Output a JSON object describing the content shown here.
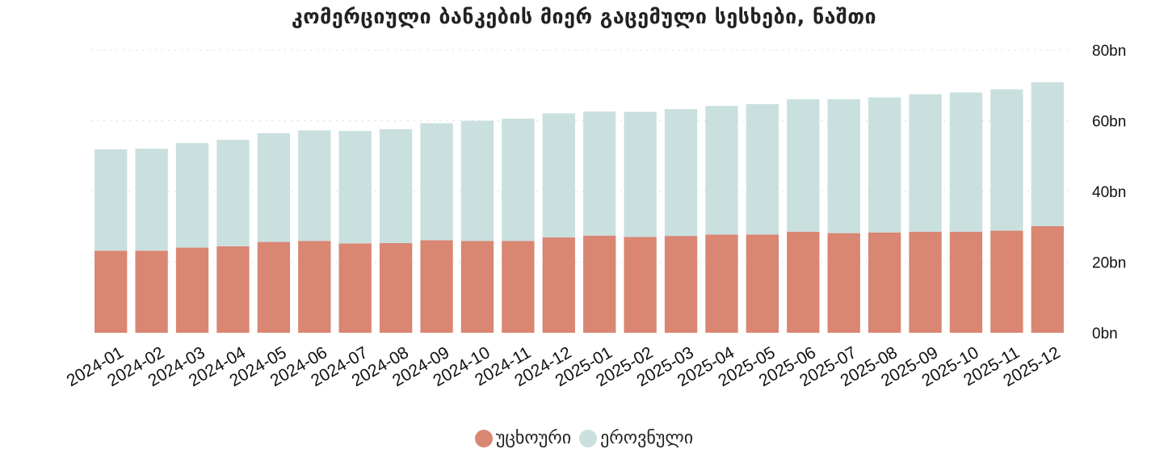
{
  "chart_data": {
    "type": "bar",
    "stacked": true,
    "title": "კომერციული ბანკების მიერ გაცემული სესხები, ნაშთი",
    "xlabel": "",
    "ylabel": "",
    "categories": [
      "2024-01",
      "2024-02",
      "2024-03",
      "2024-04",
      "2024-05",
      "2024-06",
      "2024-07",
      "2024-08",
      "2024-09",
      "2024-10",
      "2024-11",
      "2024-12",
      "2025-01",
      "2025-02",
      "2025-03",
      "2025-04",
      "2025-05",
      "2025-06",
      "2025-07",
      "2025-08",
      "2025-09",
      "2025-10",
      "2025-11",
      "2025-12"
    ],
    "series": [
      {
        "name": "უცხოური",
        "color": "#d98673",
        "values": [
          23.2,
          23.2,
          24.1,
          24.5,
          25.7,
          26.0,
          25.3,
          25.4,
          26.2,
          26.0,
          26.0,
          27.0,
          27.5,
          27.1,
          27.4,
          27.8,
          27.8,
          28.6,
          28.2,
          28.4,
          28.6,
          28.6,
          28.9,
          30.2
        ]
      },
      {
        "name": "ეროვნული",
        "color": "#c9e0df",
        "values": [
          28.7,
          28.9,
          29.6,
          30.1,
          30.8,
          31.3,
          31.8,
          32.2,
          33.1,
          34.0,
          34.6,
          35.1,
          35.1,
          35.4,
          35.9,
          36.4,
          36.9,
          37.5,
          37.9,
          38.2,
          38.9,
          39.4,
          40.0,
          40.7
        ]
      }
    ],
    "ylim": [
      0,
      80
    ],
    "yticks": [
      0,
      20,
      40,
      60,
      80
    ],
    "ytick_labels": [
      "0bn",
      "20bn",
      "40bn",
      "60bn",
      "80bn"
    ],
    "grid": "horizontal dotted",
    "legend_position": "bottom"
  }
}
